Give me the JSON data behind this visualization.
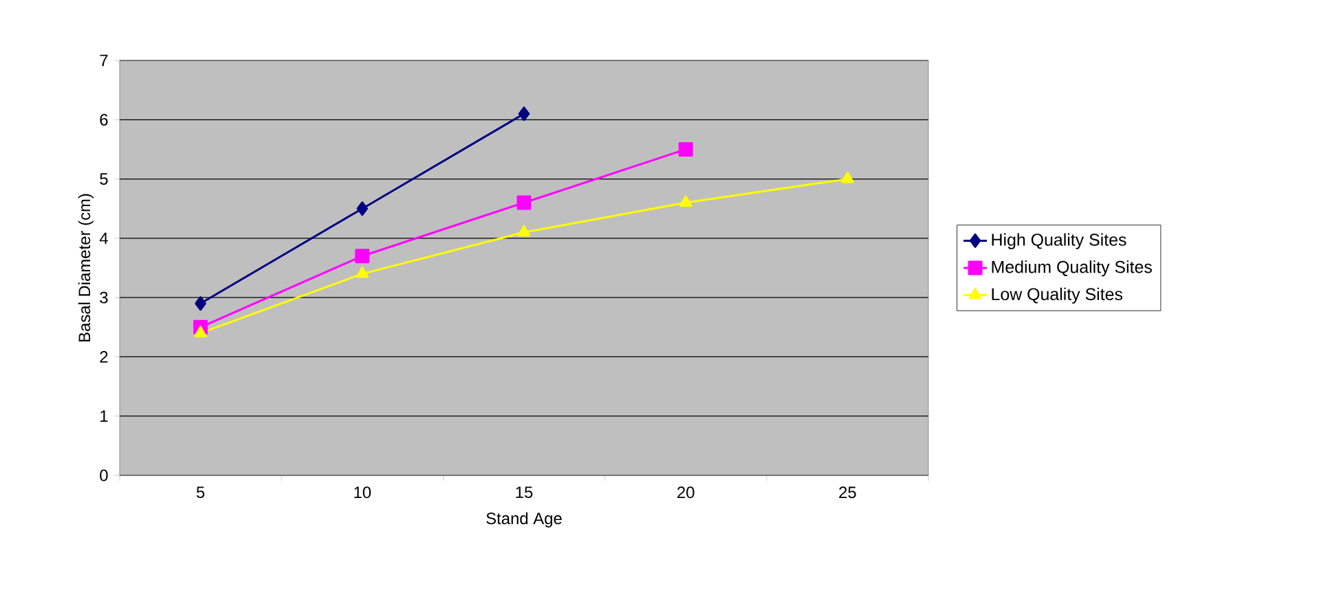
{
  "chart_data": {
    "type": "line",
    "xlabel": "Stand Age",
    "ylabel": "Basal Diameter (cm)",
    "categories": [
      "5",
      "10",
      "15",
      "20",
      "25"
    ],
    "series": [
      {
        "name": "High Quality Sites",
        "color": "#000080",
        "marker": "diamond",
        "values": [
          2.9,
          4.5,
          6.1,
          null,
          null
        ]
      },
      {
        "name": "Medium Quality Sites",
        "color": "#ff00ff",
        "marker": "square",
        "values": [
          2.5,
          3.7,
          4.6,
          5.5,
          null
        ]
      },
      {
        "name": "Low Quality Sites",
        "color": "#ffff00",
        "marker": "triangle",
        "values": [
          2.4,
          3.4,
          4.1,
          4.6,
          5.0
        ]
      }
    ],
    "ylim": [
      0,
      7
    ],
    "yticks": [
      0,
      1,
      2,
      3,
      4,
      5,
      6,
      7
    ],
    "grid": "y",
    "legend": "right"
  }
}
